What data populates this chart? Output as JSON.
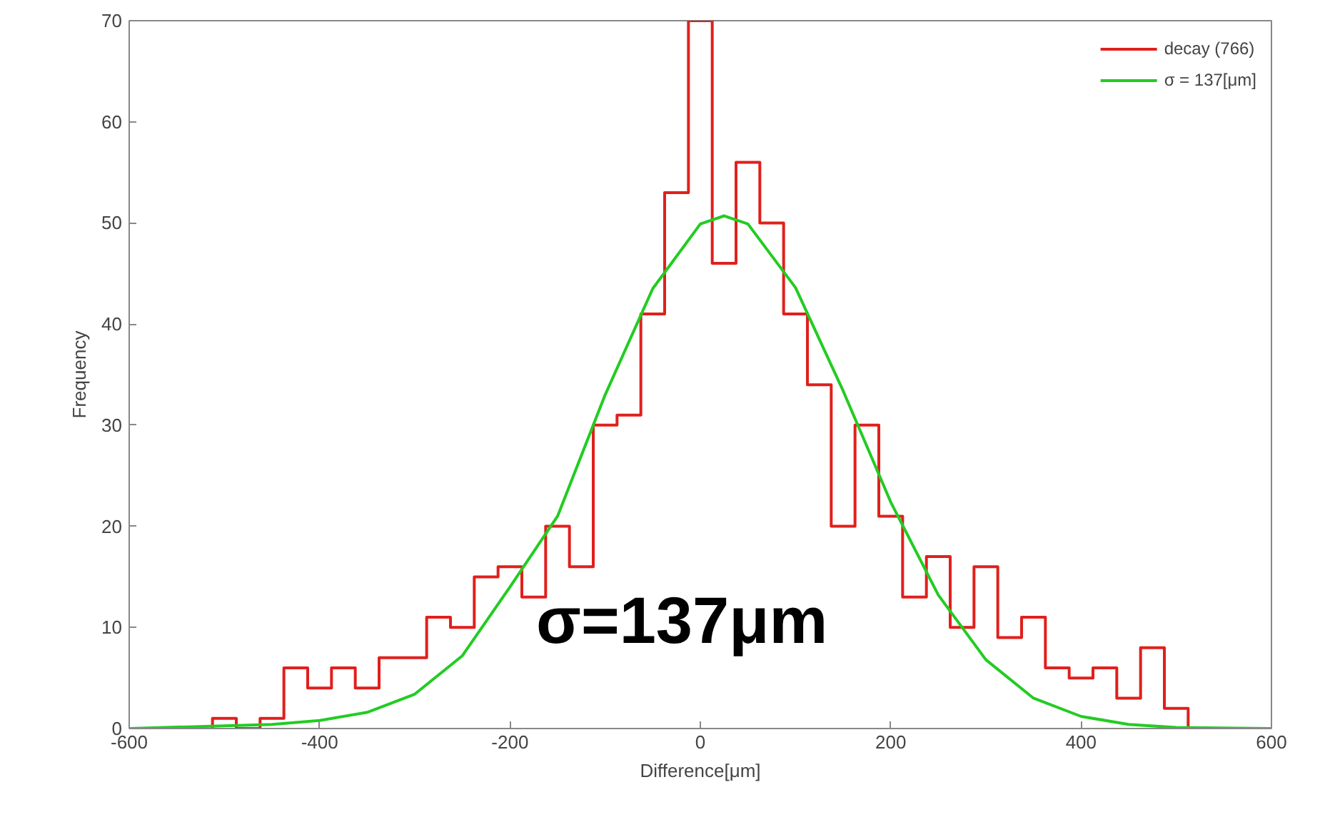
{
  "chart_data": {
    "type": "histogram",
    "xlabel": "Difference[μm]",
    "ylabel": "Frequency",
    "bins": [
      -512.5,
      -487.5,
      -462.5,
      -437.5,
      -412.5,
      -387.5,
      -362.5,
      -337.5,
      -312.5,
      -287.5,
      -262.5,
      -237.5,
      -212.5,
      -187.5,
      -162.5,
      -137.5,
      -112.5,
      -87.5,
      -62.5,
      -37.5,
      -12.5,
      12.5,
      37.5,
      62.5,
      87.5,
      112.5,
      137.5,
      162.5,
      187.5,
      212.5,
      237.5,
      262.5,
      287.5,
      312.5,
      337.5,
      362.5,
      387.5,
      412.5,
      437.5,
      462.5,
      487.5,
      512.5
    ],
    "series": [
      {
        "name": "decay (766)",
        "color": "#e0201c",
        "values": [
          1,
          0,
          1,
          6,
          4,
          6,
          4,
          7,
          7,
          11,
          10,
          15,
          16,
          13,
          20,
          16,
          30,
          31,
          41,
          53,
          70,
          46,
          56,
          50,
          41,
          34,
          20,
          30,
          21,
          13,
          17,
          10,
          16,
          9,
          11,
          6,
          5,
          6,
          3,
          8,
          2
        ]
      },
      {
        "name": "σ = 137[μm]",
        "type": "line",
        "color": "#22cc22",
        "x": [
          -600,
          -450,
          -400,
          -350,
          -300,
          -250,
          -200,
          -150,
          -100,
          -50,
          0,
          25,
          50,
          100,
          150,
          200,
          250,
          300,
          350,
          400,
          450,
          500,
          600
        ],
        "values": [
          0,
          0.4,
          0.8,
          1.6,
          3.4,
          7.2,
          14,
          21,
          33,
          43.5,
          49.9,
          50.7,
          49.9,
          43.6,
          33.4,
          22.4,
          13.2,
          6.8,
          3,
          1.2,
          0.4,
          0.1,
          0
        ]
      }
    ],
    "xlim": [
      -600,
      600
    ],
    "xticks": [
      -600,
      -400,
      -200,
      0,
      200,
      400,
      600
    ],
    "ylim": [
      0,
      70
    ],
    "yticks": [
      0,
      10,
      20,
      30,
      40,
      50,
      60,
      70
    ],
    "grid": false,
    "legend": "top right",
    "line_style": "solid",
    "marker": "none",
    "annotations": [
      "σ=137μm"
    ]
  }
}
